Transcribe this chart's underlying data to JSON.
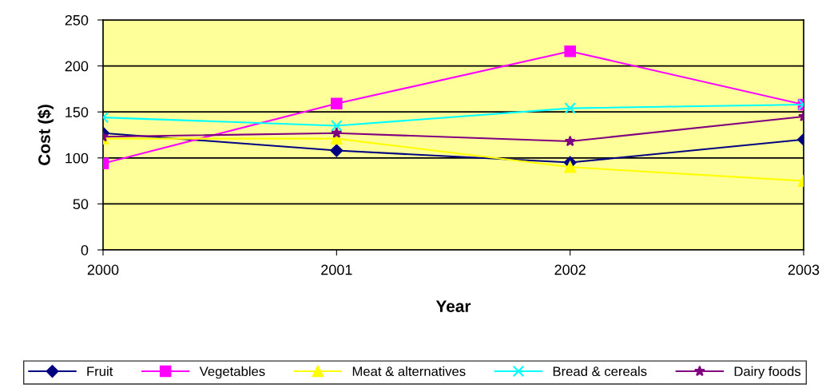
{
  "chart_data": {
    "type": "line",
    "xlabel": "Year",
    "ylabel": "Cost ($)",
    "categories": [
      "2000",
      "2001",
      "2002",
      "2003"
    ],
    "ylim": [
      0,
      250
    ],
    "yticks": [
      0,
      50,
      100,
      150,
      200,
      250
    ],
    "grid": "y",
    "legend": "bottom",
    "line_style": "solid",
    "series": [
      {
        "name": "Fruit",
        "color": "#000080",
        "marker": "diamond",
        "values": [
          127,
          108,
          95,
          120
        ]
      },
      {
        "name": "Vegetables",
        "color": "#ff00ff",
        "marker": "square",
        "values": [
          94,
          159,
          216,
          158
        ]
      },
      {
        "name": "Meat & alternatives",
        "color": "#ffff00",
        "marker": "triangle",
        "values": [
          121,
          121,
          90,
          75
        ]
      },
      {
        "name": "Bread & cereals",
        "color": "#00ffff",
        "marker": "cross",
        "values": [
          144,
          135,
          154,
          158
        ]
      },
      {
        "name": "Dairy foods",
        "color": "#800080",
        "marker": "star",
        "values": [
          123,
          127,
          118,
          145
        ]
      }
    ]
  }
}
